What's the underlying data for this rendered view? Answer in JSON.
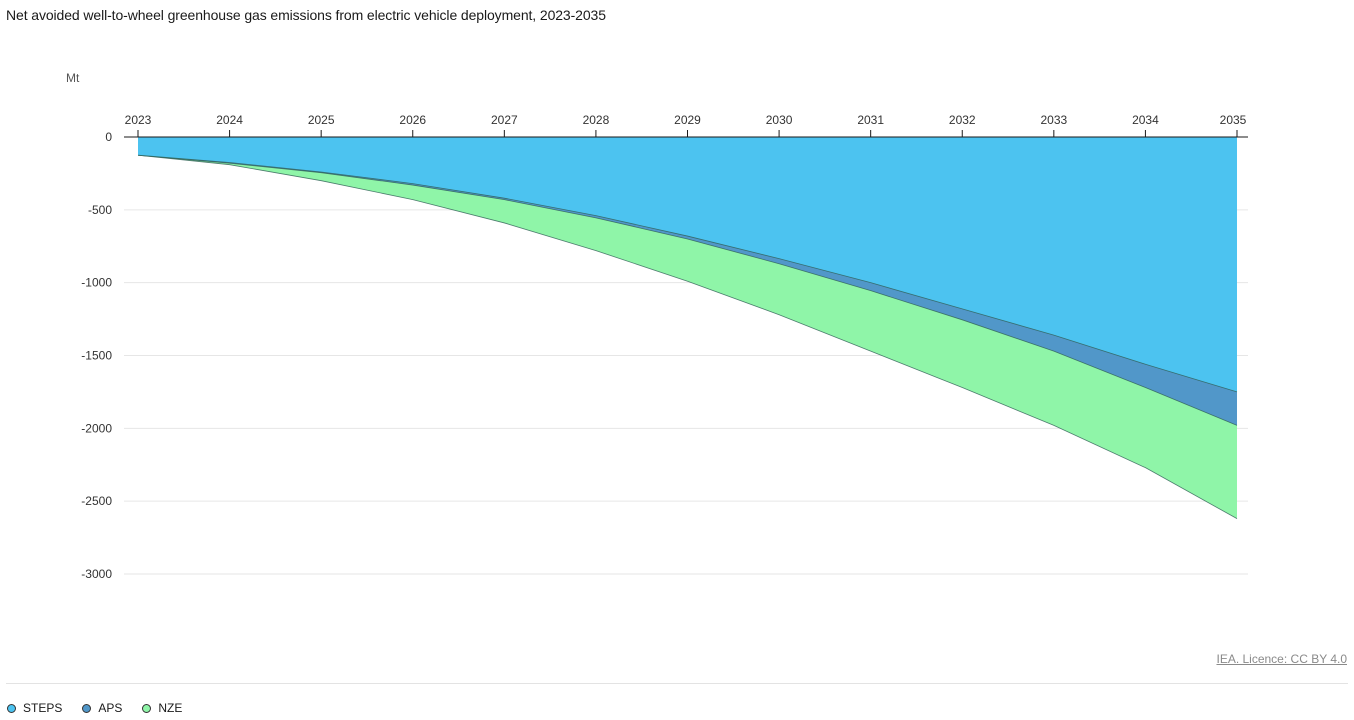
{
  "title": "Net avoided well-to-wheel greenhouse gas emissions from electric vehicle deployment, 2023-2035",
  "credit": "IEA. Licence: CC BY 4.0",
  "chart_data": {
    "type": "area",
    "title": "Net avoided well-to-wheel greenhouse gas emissions from electric vehicle deployment, 2023-2035",
    "ylabel": "Mt",
    "xlabel": "",
    "x": [
      2023,
      2024,
      2025,
      2026,
      2027,
      2028,
      2029,
      2030,
      2031,
      2032,
      2033,
      2034,
      2035
    ],
    "ylim": [
      -3000,
      0
    ],
    "yticks": [
      0,
      -500,
      -1000,
      -1500,
      -2000,
      -2500,
      -3000
    ],
    "x_axis_position": "top",
    "grid": true,
    "legend_position": "bottom-left",
    "series": [
      {
        "name": "STEPS",
        "color": "#4cc3f0",
        "values": [
          -125,
          -175,
          -240,
          -320,
          -420,
          -540,
          -680,
          -835,
          -1000,
          -1180,
          -1360,
          -1560,
          -1750
        ]
      },
      {
        "name": "APS",
        "color": "#5197c9",
        "values": [
          -125,
          -180,
          -245,
          -330,
          -430,
          -555,
          -700,
          -870,
          -1055,
          -1255,
          -1470,
          -1720,
          -1980
        ]
      },
      {
        "name": "NZE",
        "color": "#8ff5a8",
        "values": [
          -125,
          -190,
          -300,
          -430,
          -590,
          -780,
          -990,
          -1220,
          -1470,
          -1720,
          -1980,
          -2270,
          -2620
        ]
      }
    ]
  }
}
